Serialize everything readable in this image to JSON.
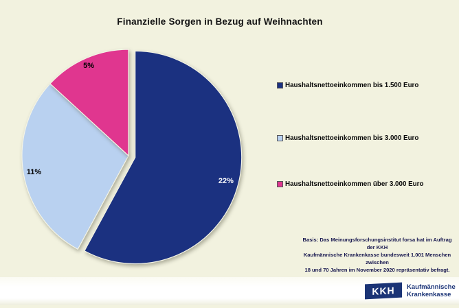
{
  "title": "Finanzielle Sorgen in Bezug auf Weihnachten",
  "colors": {
    "background": "#F2F2DF",
    "slice_stroke": "#F4F4E6",
    "dark_blue": "#1B3180",
    "light_blue": "#B9D1F0",
    "pink": "#E0368F",
    "logo_blue": "#1B3476"
  },
  "chart_data": {
    "type": "pie",
    "title": "Finanzielle Sorgen in Bezug auf Weihnachten",
    "unit": "%",
    "direction": "clockwise",
    "start_angle_deg": 0,
    "legend_position": "right",
    "slices": [
      {
        "label": "Haushaltsnettoeinkommen bis 1.500 Euro",
        "value": 22,
        "display": "22%",
        "color": "#1B3180",
        "label_color": "#FFFFFF",
        "label_r": 0.88,
        "exploded": true
      },
      {
        "label": "Haushaltsnettoeinkommen bis 3.000 Euro",
        "value": 11,
        "display": "11%",
        "color": "#B9D1F0",
        "label_color": "#000000",
        "label_r": 0.9,
        "exploded": false
      },
      {
        "label": "Haushaltsnettoeinkommen über 3.000 Euro",
        "value": 5,
        "display": "5%",
        "color": "#E0368F",
        "label_color": "#000000",
        "label_r": 0.93,
        "exploded": false
      }
    ]
  },
  "footnote": "Basis: Das Meinungsforschungsinstitut forsa hat im Auftrag der KKH\nKaufmännische Krankenkasse bundesweit 1.001 Menschen zwischen\n18 und 70 Jahren im November 2020 repräsentativ befragt.",
  "logo": {
    "abbr": "KKH",
    "name_line1": "Kaufmännische",
    "name_line2": "Krankenkasse"
  }
}
